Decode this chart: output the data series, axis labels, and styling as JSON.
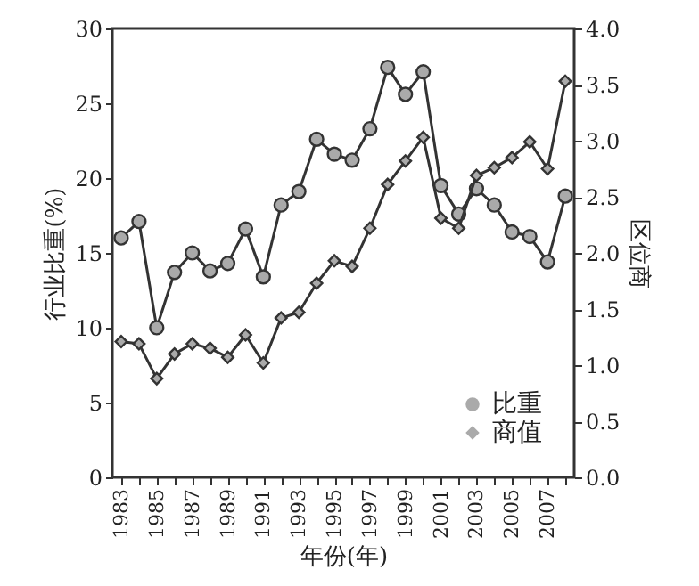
{
  "chart_data": {
    "type": "line",
    "xlabel": "年份(年)",
    "ylabel": "行业比重(%)",
    "y2label": "区位商",
    "x": [
      1983,
      1984,
      1985,
      1986,
      1987,
      1988,
      1989,
      1990,
      1991,
      1992,
      1993,
      1994,
      1995,
      1996,
      1997,
      1998,
      1999,
      2000,
      2001,
      2002,
      2003,
      2004,
      2005,
      2006,
      2007,
      2008
    ],
    "series": [
      {
        "name": "比重",
        "color": "#333333",
        "marker": "circle",
        "values": [
          16.0,
          17.1,
          10.0,
          13.7,
          15.0,
          13.8,
          14.3,
          16.6,
          13.4,
          18.2,
          19.1,
          22.6,
          21.6,
          21.2,
          23.3,
          27.4,
          25.6,
          27.1,
          19.5,
          17.6,
          19.3,
          18.2,
          16.4,
          16.1,
          14.4,
          18.8
        ]
      },
      {
        "name": "商值",
        "color": "#333333",
        "marker": "diamond",
        "axis": "y2",
        "values": [
          1.21,
          1.19,
          0.88,
          1.1,
          1.19,
          1.15,
          1.07,
          1.27,
          1.02,
          1.42,
          1.47,
          1.73,
          1.93,
          1.88,
          2.22,
          2.61,
          2.82,
          3.03,
          2.31,
          2.22,
          2.69,
          2.76,
          2.85,
          2.99,
          2.75,
          3.53
        ]
      }
    ],
    "xlim": [
      1982.5,
      2008.5
    ],
    "xticks": [
      1983,
      {
        "value": 1984,
        "label": null
      },
      1985,
      {
        "value": 1986,
        "label": null
      },
      1987,
      {
        "value": 1988,
        "label": null
      },
      1989,
      {
        "value": 1990,
        "label": null
      },
      1991,
      {
        "value": 1992,
        "label": null
      },
      1993,
      {
        "value": 1994,
        "label": null
      },
      1995,
      {
        "value": 1996,
        "label": null
      },
      1997,
      {
        "value": 1998,
        "label": null
      },
      1999,
      {
        "value": 2000,
        "label": null
      },
      2001,
      {
        "value": 2002,
        "label": null
      },
      2003,
      {
        "value": 2004,
        "label": null
      },
      2005,
      {
        "value": 2006,
        "label": null
      },
      2007,
      {
        "value": 2008,
        "label": null
      }
    ],
    "ylim": [
      0,
      30
    ],
    "yticks": [
      0,
      5,
      10,
      15,
      20,
      25,
      30
    ],
    "y2lim": [
      0,
      4
    ],
    "y2ticks": [
      {
        "value": 0,
        "label": "0.0"
      },
      {
        "value": 0.5,
        "label": "0.5"
      },
      {
        "value": 1,
        "label": "1.0"
      },
      {
        "value": 1.5,
        "label": "1.5"
      },
      {
        "value": 2,
        "label": "2.0"
      },
      {
        "value": 2.5,
        "label": "2.5"
      },
      {
        "value": 3,
        "label": "3.0"
      },
      {
        "value": 3.5,
        "label": "3.5"
      },
      {
        "value": 4,
        "label": "4.0"
      }
    ],
    "legend": "bottom right"
  }
}
